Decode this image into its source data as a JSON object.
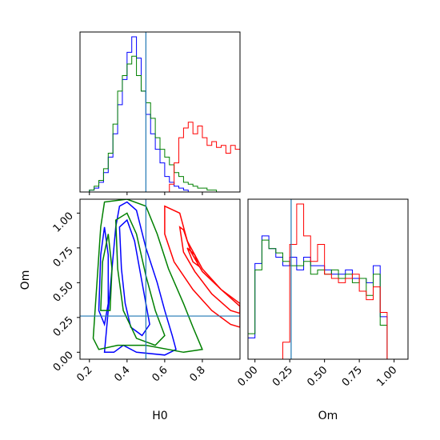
{
  "chart_data": {
    "type": "corner",
    "parameters": [
      "H0",
      "Om"
    ],
    "truths": {
      "H0": 0.5,
      "Om": 0.26
    },
    "series_colors": [
      "#0000ff",
      "#008000",
      "#ff0000"
    ],
    "truth_color": "#1f77b4",
    "panels": {
      "h0_histogram": {
        "xlim": [
          0.15,
          1.0
        ],
        "bin_width": 0.025,
        "series": [
          {
            "color": "#0000ff",
            "values": [
              0,
              0,
              1,
              2,
              5,
              10,
              18,
              30,
              45,
              58,
              72,
              80,
              69,
              52,
              40,
              30,
              22,
              15,
              8,
              5,
              3,
              2,
              1,
              0,
              0,
              0,
              0,
              0,
              0,
              0,
              0,
              0,
              0,
              0
            ]
          },
          {
            "color": "#008000",
            "values": [
              0,
              0,
              1,
              3,
              6,
              12,
              20,
              35,
              52,
              60,
              66,
              70,
              60,
              52,
              46,
              38,
              28,
              22,
              18,
              14,
              10,
              8,
              5,
              4,
              3,
              2,
              2,
              1,
              1,
              0,
              0,
              0,
              0,
              0
            ]
          },
          {
            "color": "#ff0000",
            "values": [
              0,
              0,
              0,
              0,
              0,
              0,
              0,
              0,
              0,
              0,
              0,
              0,
              0,
              0,
              0,
              0,
              0,
              0,
              0,
              4,
              15,
              28,
              33,
              36,
              30,
              34,
              28,
              24,
              26,
              23,
              24,
              20,
              24,
              22
            ]
          }
        ]
      },
      "om_histogram": {
        "xlim": [
          -0.05,
          1.1
        ],
        "xticks": [
          "0.00",
          "0.25",
          "0.50",
          "0.75",
          "1.00"
        ],
        "bin_width": 0.05,
        "series": [
          {
            "color": "#0000ff",
            "values": [
              10,
              45,
              58,
              52,
              48,
              44,
              48,
              42,
              48,
              44,
              44,
              42,
              40,
              40,
              42,
              38,
              38,
              36,
              44,
              20,
              0
            ]
          },
          {
            "color": "#008000",
            "values": [
              12,
              42,
              56,
              52,
              50,
              46,
              44,
              44,
              46,
              40,
              42,
              40,
              42,
              38,
              40,
              36,
              38,
              30,
              40,
              16,
              0
            ]
          },
          {
            "color": "#ff0000",
            "values": [
              0,
              0,
              0,
              0,
              0,
              8,
              54,
              73,
              58,
              46,
              54,
              40,
              38,
              36,
              38,
              40,
              32,
              28,
              34,
              22,
              0
            ]
          }
        ]
      },
      "joint": {
        "xlabel": "H0",
        "ylabel": "Om",
        "xlim": [
          0.15,
          1.0
        ],
        "ylim": [
          -0.05,
          1.1
        ],
        "xticks": [
          "0.2",
          "0.4",
          "0.6",
          "0.8"
        ],
        "yticks": [
          "0.00",
          "0.25",
          "0.50",
          "0.75",
          "1.00"
        ],
        "contours": [
          {
            "color": "#0000ff",
            "rings": [
              [
                [
                  0.28,
                  0.0
                ],
                [
                  0.3,
                  0.3
                ],
                [
                  0.32,
                  0.6
                ],
                [
                  0.34,
                  0.9
                ],
                [
                  0.36,
                  1.05
                ],
                [
                  0.4,
                  1.08
                ],
                [
                  0.45,
                  1.02
                ],
                [
                  0.5,
                  0.75
                ],
                [
                  0.56,
                  0.5
                ],
                [
                  0.6,
                  0.3
                ],
                [
                  0.64,
                  0.12
                ],
                [
                  0.66,
                  0.02
                ],
                [
                  0.6,
                  -0.02
                ],
                [
                  0.45,
                  0.0
                ],
                [
                  0.38,
                  0.05
                ],
                [
                  0.33,
                  0.0
                ]
              ],
              [
                [
                  0.36,
                  0.9
                ],
                [
                  0.37,
                  0.6
                ],
                [
                  0.39,
                  0.35
                ],
                [
                  0.42,
                  0.18
                ],
                [
                  0.48,
                  0.12
                ],
                [
                  0.52,
                  0.2
                ],
                [
                  0.48,
                  0.5
                ],
                [
                  0.44,
                  0.8
                ],
                [
                  0.4,
                  0.95
                ]
              ],
              [
                [
                  0.25,
                  0.3
                ],
                [
                  0.26,
                  0.7
                ],
                [
                  0.28,
                  0.9
                ],
                [
                  0.3,
                  0.7
                ],
                [
                  0.3,
                  0.35
                ],
                [
                  0.28,
                  0.2
                ]
              ]
            ]
          },
          {
            "color": "#008000",
            "rings": [
              [
                [
                  0.22,
                  0.1
                ],
                [
                  0.24,
                  0.5
                ],
                [
                  0.26,
                  0.9
                ],
                [
                  0.28,
                  1.08
                ],
                [
                  0.4,
                  1.1
                ],
                [
                  0.5,
                  1.05
                ],
                [
                  0.56,
                  0.85
                ],
                [
                  0.62,
                  0.6
                ],
                [
                  0.7,
                  0.35
                ],
                [
                  0.75,
                  0.18
                ],
                [
                  0.8,
                  0.02
                ],
                [
                  0.7,
                  0.0
                ],
                [
                  0.5,
                  0.05
                ],
                [
                  0.35,
                  0.05
                ],
                [
                  0.25,
                  0.02
                ]
              ],
              [
                [
                  0.34,
                  0.95
                ],
                [
                  0.35,
                  0.6
                ],
                [
                  0.38,
                  0.3
                ],
                [
                  0.45,
                  0.1
                ],
                [
                  0.55,
                  0.05
                ],
                [
                  0.6,
                  0.12
                ],
                [
                  0.55,
                  0.3
                ],
                [
                  0.5,
                  0.55
                ],
                [
                  0.45,
                  0.85
                ],
                [
                  0.4,
                  1.0
                ]
              ],
              [
                [
                  0.26,
                  0.3
                ],
                [
                  0.27,
                  0.65
                ],
                [
                  0.3,
                  0.85
                ],
                [
                  0.32,
                  0.6
                ],
                [
                  0.31,
                  0.3
                ]
              ]
            ]
          },
          {
            "color": "#ff0000",
            "rings": [
              [
                [
                  0.6,
                  1.05
                ],
                [
                  0.6,
                  0.85
                ],
                [
                  0.65,
                  0.65
                ],
                [
                  0.75,
                  0.45
                ],
                [
                  0.85,
                  0.3
                ],
                [
                  0.95,
                  0.2
                ],
                [
                  1.0,
                  0.18
                ],
                [
                  1.0,
                  0.35
                ],
                [
                  0.9,
                  0.45
                ],
                [
                  0.8,
                  0.6
                ],
                [
                  0.72,
                  0.8
                ],
                [
                  0.68,
                  1.0
                ]
              ],
              [
                [
                  0.68,
                  0.9
                ],
                [
                  0.7,
                  0.72
                ],
                [
                  0.76,
                  0.58
                ],
                [
                  0.85,
                  0.42
                ],
                [
                  0.95,
                  0.3
                ],
                [
                  1.0,
                  0.28
                ],
                [
                  1.0,
                  0.33
                ],
                [
                  0.9,
                  0.45
                ],
                [
                  0.8,
                  0.58
                ],
                [
                  0.74,
                  0.72
                ],
                [
                  0.7,
                  0.88
                ]
              ],
              [
                [
                  0.72,
                  0.75
                ],
                [
                  0.75,
                  0.65
                ],
                [
                  0.78,
                  0.62
                ],
                [
                  0.76,
                  0.7
                ]
              ]
            ]
          }
        ]
      }
    }
  }
}
